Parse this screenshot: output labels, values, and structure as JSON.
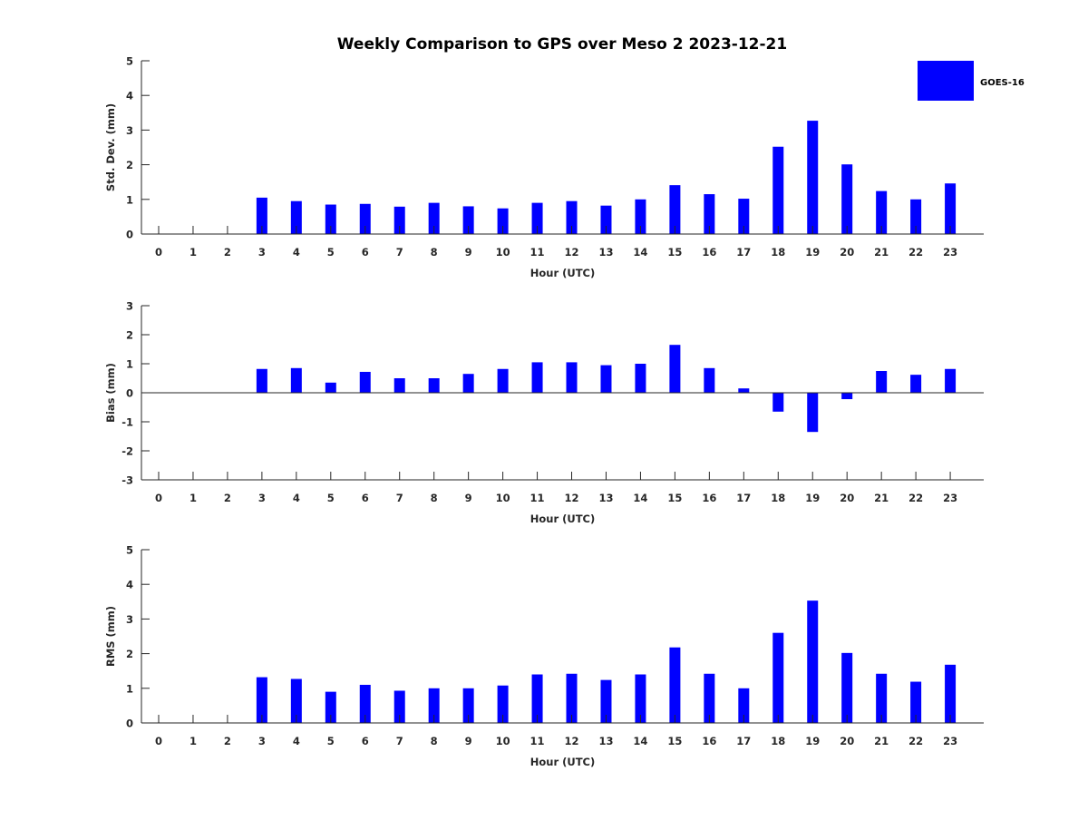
{
  "title": "Weekly Comparison to GPS over Meso 2 2023-12-21",
  "legend": {
    "label": "GOES-16",
    "color": "#0000ff"
  },
  "chart_data": [
    {
      "type": "bar",
      "ylabel": "Std. Dev. (mm)",
      "xlabel": "Hour (UTC)",
      "ylim": [
        0,
        5
      ],
      "yticks": [
        0,
        1,
        2,
        3,
        4,
        5
      ],
      "categories": [
        "0",
        "1",
        "2",
        "3",
        "4",
        "5",
        "6",
        "7",
        "8",
        "9",
        "10",
        "11",
        "12",
        "13",
        "14",
        "15",
        "16",
        "17",
        "18",
        "19",
        "20",
        "21",
        "22",
        "23"
      ],
      "series": [
        {
          "name": "GOES-16",
          "values": [
            null,
            null,
            null,
            1.05,
            0.95,
            0.85,
            0.87,
            0.79,
            0.9,
            0.8,
            0.74,
            0.9,
            0.95,
            0.82,
            1.0,
            1.41,
            1.15,
            1.02,
            2.52,
            3.27,
            2.01,
            1.24,
            1.0,
            1.46
          ]
        }
      ]
    },
    {
      "type": "bar",
      "ylabel": "Bias (mm)",
      "xlabel": "Hour (UTC)",
      "ylim": [
        -3,
        3
      ],
      "yticks": [
        -3,
        -2,
        -1,
        0,
        1,
        2,
        3
      ],
      "categories": [
        "0",
        "1",
        "2",
        "3",
        "4",
        "5",
        "6",
        "7",
        "8",
        "9",
        "10",
        "11",
        "12",
        "13",
        "14",
        "15",
        "16",
        "17",
        "18",
        "19",
        "20",
        "21",
        "22",
        "23"
      ],
      "series": [
        {
          "name": "GOES-16",
          "values": [
            null,
            null,
            null,
            0.82,
            0.85,
            0.35,
            0.72,
            0.5,
            0.5,
            0.65,
            0.82,
            1.05,
            1.05,
            0.95,
            1.0,
            1.65,
            0.85,
            0.15,
            -0.65,
            -1.35,
            -0.22,
            0.75,
            0.62,
            0.82
          ]
        }
      ]
    },
    {
      "type": "bar",
      "ylabel": "RMS (mm)",
      "xlabel": "Hour (UTC)",
      "ylim": [
        0,
        5
      ],
      "yticks": [
        0,
        1,
        2,
        3,
        4,
        5
      ],
      "categories": [
        "0",
        "1",
        "2",
        "3",
        "4",
        "5",
        "6",
        "7",
        "8",
        "9",
        "10",
        "11",
        "12",
        "13",
        "14",
        "15",
        "16",
        "17",
        "18",
        "19",
        "20",
        "21",
        "22",
        "23"
      ],
      "series": [
        {
          "name": "GOES-16",
          "values": [
            null,
            null,
            null,
            1.32,
            1.27,
            0.9,
            1.1,
            0.93,
            1.0,
            1.0,
            1.08,
            1.4,
            1.42,
            1.24,
            1.4,
            2.18,
            1.42,
            1.0,
            2.6,
            3.53,
            2.02,
            1.42,
            1.19,
            1.68
          ]
        }
      ]
    }
  ]
}
